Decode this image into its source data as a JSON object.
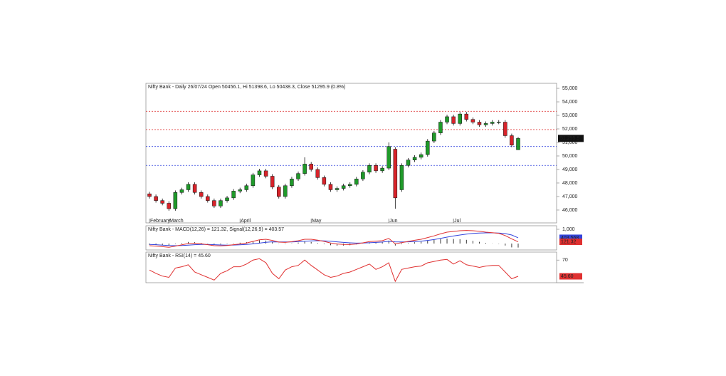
{
  "chart_data": [
    {
      "type": "candlestick",
      "title": "Nifty Bank - Daily 26/07/24 Open 50456.1, Hi 51398.6, Lo 50438.3, Close 51295.9 (0.8%)",
      "categories": [
        "February",
        null,
        null,
        "March",
        null,
        null,
        null,
        null,
        null,
        null,
        null,
        null,
        null,
        null,
        "April",
        null,
        null,
        null,
        null,
        null,
        null,
        null,
        null,
        null,
        null,
        "May",
        null,
        null,
        null,
        null,
        null,
        null,
        null,
        null,
        null,
        null,
        null,
        "Jun",
        null,
        null,
        null,
        null,
        null,
        null,
        null,
        null,
        null,
        "Jul",
        null,
        null,
        null,
        null,
        null,
        null,
        null,
        null,
        null,
        null
      ],
      "open": [
        47200,
        47000,
        46700,
        46500,
        46100,
        47300,
        47500,
        47900,
        47300,
        47000,
        46700,
        46300,
        46700,
        46900,
        47400,
        47500,
        47800,
        48600,
        48900,
        48500,
        47700,
        47000,
        47800,
        48300,
        48700,
        49400,
        49000,
        48400,
        47900,
        47500,
        47600,
        47800,
        47900,
        48300,
        48800,
        49300,
        48900,
        49100,
        50500,
        47500,
        49300,
        49700,
        49900,
        50100,
        51100,
        51700,
        52500,
        52900,
        52400,
        53100,
        52700,
        52500,
        52300,
        52400,
        52500,
        52500,
        51500,
        50456.1
      ],
      "high": [
        47350,
        47150,
        46850,
        46650,
        47450,
        47650,
        48050,
        48050,
        47450,
        47150,
        46850,
        46850,
        47050,
        47550,
        47650,
        47950,
        48750,
        49050,
        49050,
        48650,
        47850,
        47950,
        48450,
        48850,
        49900,
        49550,
        49150,
        48550,
        48050,
        47750,
        47950,
        48050,
        48450,
        48950,
        49450,
        49450,
        49250,
        51000,
        50650,
        49450,
        49850,
        50050,
        50250,
        51250,
        51850,
        52650,
        53050,
        53050,
        53250,
        53250,
        52850,
        52650,
        52550,
        52650,
        52650,
        52650,
        51650,
        51398.6
      ],
      "low": [
        46850,
        46550,
        46350,
        45950,
        45950,
        47150,
        47350,
        47150,
        46850,
        46550,
        46150,
        46150,
        46550,
        46750,
        47250,
        47350,
        47650,
        48450,
        48350,
        47550,
        46850,
        46850,
        47650,
        48150,
        48550,
        48850,
        48250,
        47750,
        47350,
        47350,
        47450,
        47650,
        47750,
        48150,
        48650,
        48750,
        48750,
        48950,
        46100,
        47350,
        49150,
        49550,
        49750,
        49950,
        50950,
        51550,
        52350,
        52250,
        52250,
        52550,
        52350,
        52150,
        52150,
        52250,
        52350,
        51350,
        50650,
        50438.3
      ],
      "close": [
        47000,
        46700,
        46500,
        46100,
        47300,
        47500,
        47900,
        47300,
        47000,
        46700,
        46300,
        46700,
        46900,
        47400,
        47500,
        47800,
        48600,
        48900,
        48500,
        47700,
        47000,
        47800,
        48300,
        48700,
        49400,
        49000,
        48400,
        47900,
        47500,
        47600,
        47800,
        47900,
        48300,
        48800,
        49300,
        48900,
        49100,
        50700,
        46900,
        49300,
        49700,
        49900,
        50100,
        51100,
        51700,
        52500,
        52900,
        52400,
        53100,
        52700,
        52500,
        52300,
        52400,
        52500,
        52500,
        51500,
        50800,
        51295.9
      ],
      "up_color": "#1f9a2a",
      "down_color": "#d8232a",
      "ylim": [
        45050,
        55370
      ],
      "yticks": [
        {
          "value": 55000,
          "label": "55,000"
        },
        {
          "value": 54000,
          "label": "54,000"
        },
        {
          "value": 53000,
          "label": "53,000"
        },
        {
          "value": 52000,
          "label": "52,000"
        },
        {
          "value": 51000,
          "label": "51,000"
        },
        {
          "value": 50000,
          "label": "50,000"
        },
        {
          "value": 49000,
          "label": "49,000"
        },
        {
          "value": 48000,
          "label": "48,000"
        },
        {
          "value": 47000,
          "label": "47,000"
        },
        {
          "value": 46000,
          "label": "46,000"
        }
      ],
      "levels": [
        {
          "value": 53300,
          "color": "#e04040"
        },
        {
          "value": 51950,
          "color": "#e04040"
        },
        {
          "value": 50700,
          "color": "#3344dd"
        },
        {
          "value": 49300,
          "color": "#3344dd"
        }
      ],
      "last_label": "51,295.9"
    },
    {
      "type": "line",
      "title": "Nifty Bank - MACD(12,26) = 121.32, Signal(12,26,9) = 403.57",
      "series": [
        {
          "color": "#3344dd",
          "last_label": "403.568",
          "values": [
            -60,
            -80,
            -110,
            -140,
            -150,
            -140,
            -110,
            -80,
            -60,
            -60,
            -80,
            -100,
            -110,
            -105,
            -90,
            -65,
            -25,
            30,
            90,
            120,
            115,
            110,
            110,
            130,
            165,
            190,
            200,
            190,
            160,
            120,
            80,
            50,
            30,
            35,
            55,
            80,
            105,
            155,
            120,
            110,
            120,
            140,
            170,
            220,
            280,
            360,
            450,
            530,
            600,
            660,
            710,
            740,
            750,
            750,
            740,
            700,
            600,
            403.568
          ]
        },
        {
          "color": "#e03030",
          "last_label": "121.32",
          "values": [
            -150,
            -180,
            -220,
            -260,
            -180,
            -90,
            0,
            20,
            -20,
            -80,
            -150,
            -160,
            -140,
            -80,
            -30,
            40,
            150,
            260,
            300,
            220,
            100,
            80,
            130,
            200,
            300,
            300,
            240,
            150,
            40,
            -30,
            -60,
            -70,
            -30,
            50,
            140,
            170,
            200,
            360,
            -20,
            60,
            150,
            230,
            300,
            420,
            540,
            680,
            800,
            850,
            900,
            920,
            900,
            860,
            800,
            760,
            720,
            560,
            330,
            121.32
          ]
        }
      ],
      "histogram": {
        "color": "#222222",
        "values": [
          -90,
          -100,
          -110,
          -120,
          -30,
          50,
          110,
          100,
          40,
          -20,
          -70,
          -60,
          -30,
          25,
          60,
          105,
          175,
          230,
          210,
          100,
          -15,
          -30,
          20,
          70,
          135,
          110,
          40,
          -40,
          -120,
          -150,
          -140,
          -120,
          -60,
          15,
          85,
          90,
          95,
          205,
          -140,
          -50,
          30,
          90,
          130,
          200,
          260,
          320,
          350,
          320,
          300,
          260,
          190,
          120,
          50,
          10,
          -20,
          -140,
          -270,
          -282.25
        ]
      },
      "ylim": [
        -450,
        1250
      ],
      "yticks": [
        {
          "value": 1000,
          "label": "1,000"
        }
      ]
    },
    {
      "type": "line",
      "title": "Nifty Bank - RSI(14) = 45.60",
      "series": [
        {
          "color": "#e03030",
          "last_label": "45.60",
          "values": [
            55,
            50,
            46,
            44,
            58,
            60,
            63,
            52,
            48,
            44,
            40,
            50,
            54,
            60,
            60,
            64,
            70,
            72,
            66,
            50,
            42,
            55,
            60,
            62,
            70,
            62,
            55,
            48,
            44,
            46,
            50,
            52,
            56,
            60,
            64,
            56,
            60,
            66,
            38,
            56,
            58,
            60,
            61,
            66,
            68,
            70,
            71,
            64,
            69,
            63,
            61,
            59,
            61,
            62,
            62,
            52,
            42,
            45.6
          ]
        }
      ],
      "ylim": [
        36,
        82
      ],
      "yticks": [
        70
      ]
    }
  ]
}
